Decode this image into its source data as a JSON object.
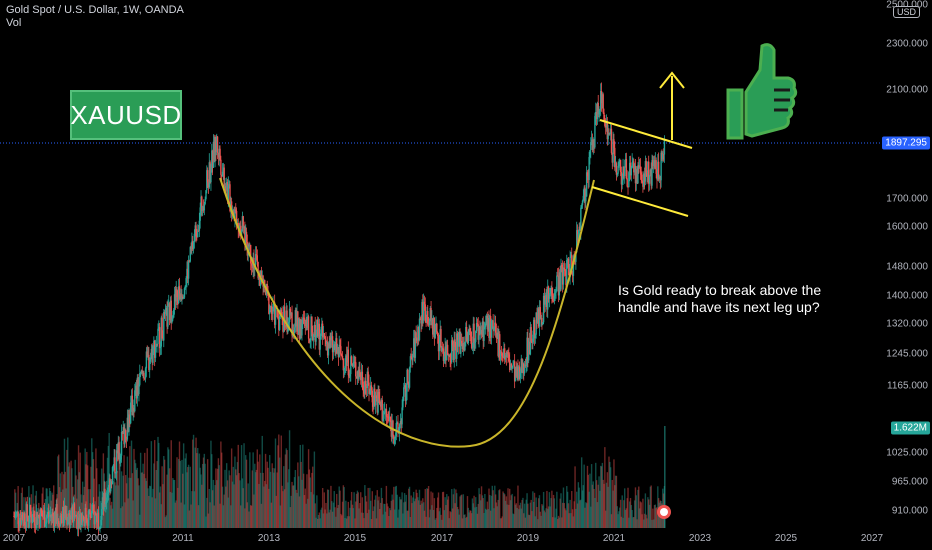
{
  "header": {
    "title": "Gold Spot / U.S. Dollar, 1W, OANDA",
    "indicator": "Vol"
  },
  "price_axis": {
    "currency": "USD",
    "ticks": [
      "2500.000",
      "2300.000",
      "2100.000",
      "1700.000",
      "1600.000",
      "1480.000",
      "1400.000",
      "1320.000",
      "1245.000",
      "1165.000",
      "1025.000",
      "965.000",
      "910.000"
    ],
    "current_price": "1897.295",
    "current_price_color": "#2962ff",
    "volume_badge": "1.622M",
    "volume_badge_color": "#26a69a"
  },
  "time_axis": {
    "ticks": [
      "2007",
      "2009",
      "2011",
      "2013",
      "2015",
      "2017",
      "2019",
      "2021",
      "2023",
      "2025",
      "2027"
    ]
  },
  "annotations": {
    "symbol_label": "XAUUSD",
    "note": "Is Gold ready to break above the handle and have its next leg up?",
    "thumb_icon": "thumbs-up-icon",
    "arrow_icon": "arrow-up-icon"
  },
  "colors": {
    "up": "#26a69a",
    "down": "#ef5350",
    "cup": "#c9b52a",
    "handle_lines": "#ffeb3b",
    "label_box": "#2a9d56"
  },
  "chart_data": {
    "type": "candlestick",
    "x": [
      "2008",
      "2009",
      "2010",
      "2011",
      "2011.7",
      "2012",
      "2013",
      "2014",
      "2015",
      "2015.9",
      "2016.5",
      "2017",
      "2018",
      "2018.7",
      "2019",
      "2019.5",
      "2020",
      "2020.6",
      "2021",
      "2021.5",
      "2022",
      "2022.1"
    ],
    "close": [
      900,
      900,
      1200,
      1450,
      1900,
      1700,
      1350,
      1300,
      1200,
      1060,
      1370,
      1250,
      1320,
      1180,
      1290,
      1420,
      1500,
      2070,
      1800,
      1780,
      1800,
      1897.295
    ],
    "ylim": [
      880,
      2550
    ],
    "current_price": 1897.295,
    "last_volume": "1.622M"
  }
}
